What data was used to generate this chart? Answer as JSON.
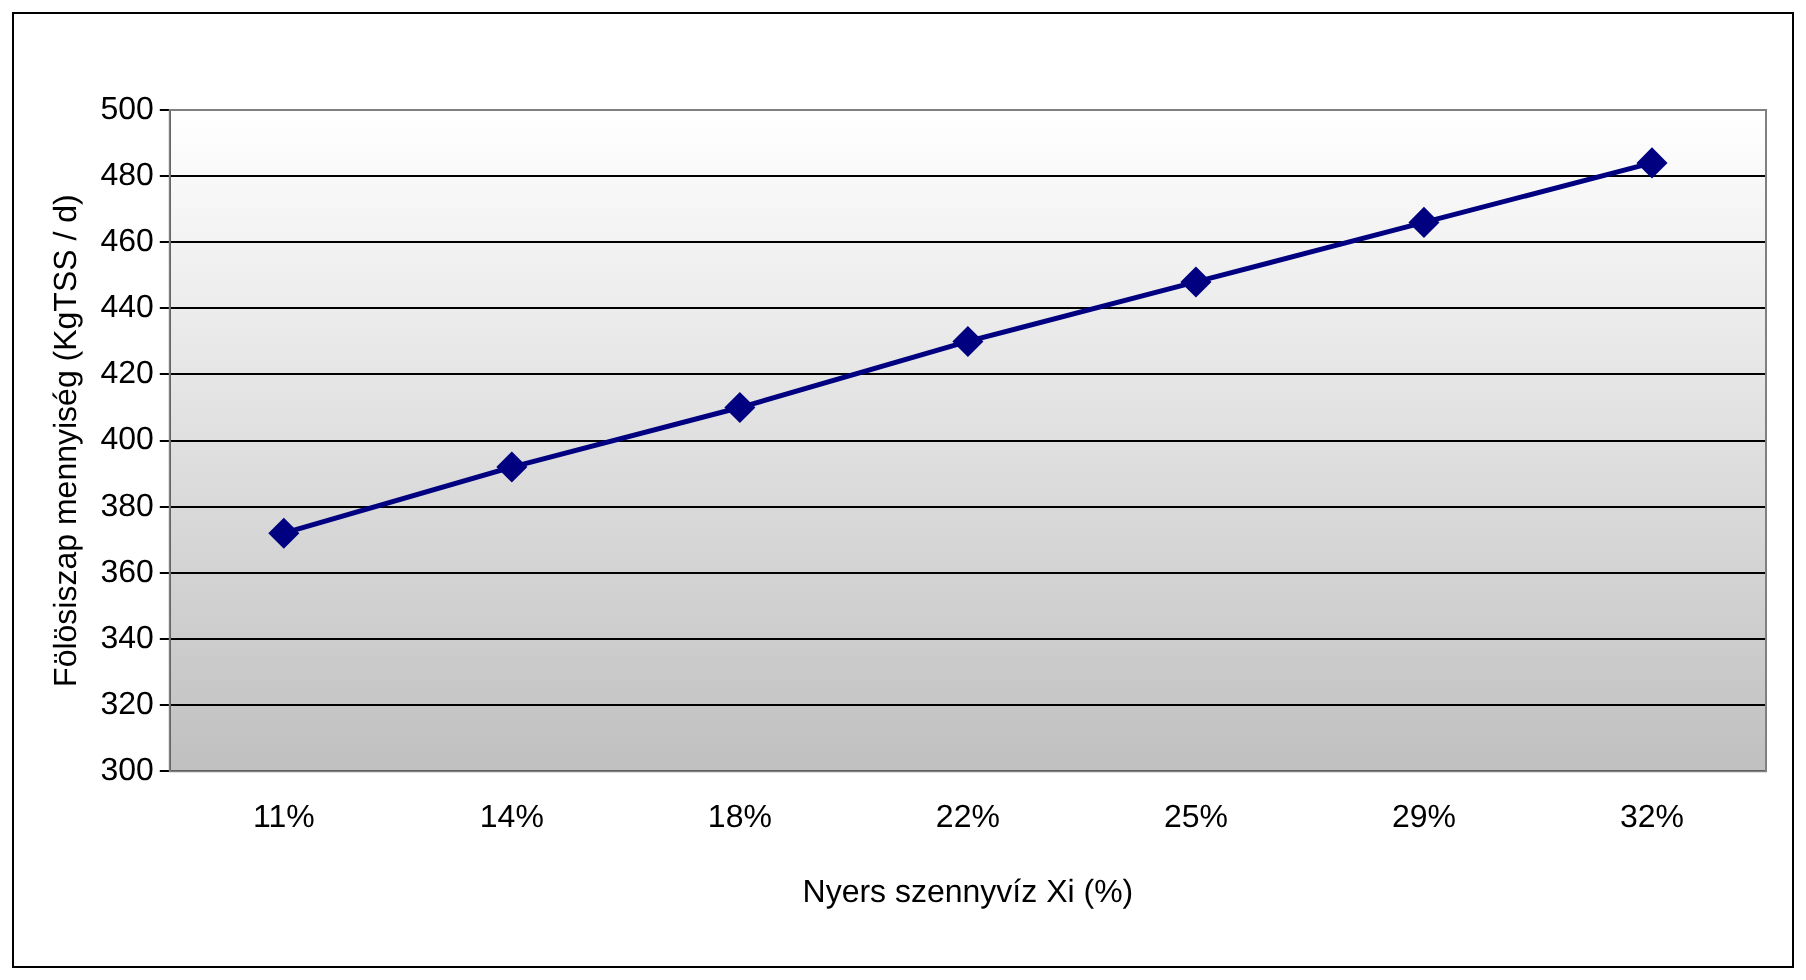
{
  "chart_data": {
    "type": "line",
    "xlabel": "Nyers szennyvíz Xi (%)",
    "ylabel": "Fölösiszap mennyiség (KgTSS / d)",
    "categories": [
      "11%",
      "14%",
      "18%",
      "22%",
      "25%",
      "29%",
      "32%"
    ],
    "series": [
      {
        "color": "#000080",
        "values": [
          372,
          392,
          410,
          430,
          448,
          466,
          484
        ]
      }
    ],
    "ylim": [
      300,
      500
    ],
    "yticks": [
      300,
      320,
      340,
      360,
      380,
      400,
      420,
      440,
      460,
      480,
      500
    ],
    "grid": "y",
    "legend": false,
    "marker": "diamond",
    "line_style": "solid"
  }
}
